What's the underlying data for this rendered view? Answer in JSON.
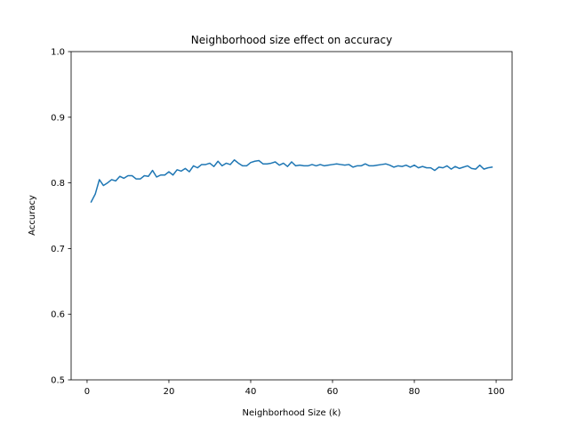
{
  "chart_data": {
    "type": "line",
    "title": "Neighborhood size effect on accuracy",
    "xlabel": "Neighborhood Size (k)",
    "ylabel": "Accuracy",
    "xlim": [
      -3.9,
      103.9
    ],
    "ylim": [
      0.5,
      1.0
    ],
    "xticks": [
      0,
      20,
      40,
      60,
      80,
      100
    ],
    "yticks": [
      0.5,
      0.6,
      0.7,
      0.8,
      0.9,
      1.0
    ],
    "ytick_labels": [
      "0.5",
      "0.6",
      "0.7",
      "0.8",
      "0.9",
      "1.0"
    ],
    "grid": false,
    "line_color": "#1f77b4",
    "series": [
      {
        "x": [
          1,
          2,
          3,
          4,
          5,
          6,
          7,
          8,
          9,
          10,
          11,
          12,
          13,
          14,
          15,
          16,
          17,
          18,
          19,
          20,
          21,
          22,
          23,
          24,
          25,
          26,
          27,
          28,
          29,
          30,
          31,
          32,
          33,
          34,
          35,
          36,
          37,
          38,
          39,
          40,
          41,
          42,
          43,
          44,
          45,
          46,
          47,
          48,
          49,
          50,
          51,
          52,
          53,
          54,
          55,
          56,
          57,
          58,
          59,
          60,
          61,
          62,
          63,
          64,
          65,
          66,
          67,
          68,
          69,
          70,
          71,
          72,
          73,
          74,
          75,
          76,
          77,
          78,
          79,
          80,
          81,
          82,
          83,
          84,
          85,
          86,
          87,
          88,
          89,
          90,
          91,
          92,
          93,
          94,
          95,
          96,
          97,
          98,
          99
        ],
        "values": [
          0.771,
          0.783,
          0.805,
          0.796,
          0.8,
          0.805,
          0.803,
          0.81,
          0.807,
          0.811,
          0.811,
          0.806,
          0.806,
          0.811,
          0.81,
          0.819,
          0.809,
          0.812,
          0.812,
          0.817,
          0.812,
          0.82,
          0.818,
          0.822,
          0.817,
          0.826,
          0.823,
          0.828,
          0.828,
          0.83,
          0.825,
          0.833,
          0.826,
          0.83,
          0.828,
          0.835,
          0.83,
          0.826,
          0.826,
          0.831,
          0.833,
          0.834,
          0.829,
          0.829,
          0.83,
          0.832,
          0.827,
          0.83,
          0.825,
          0.832,
          0.826,
          0.827,
          0.826,
          0.826,
          0.828,
          0.826,
          0.828,
          0.826,
          0.827,
          0.828,
          0.829,
          0.828,
          0.827,
          0.828,
          0.824,
          0.826,
          0.826,
          0.829,
          0.826,
          0.826,
          0.827,
          0.828,
          0.829,
          0.827,
          0.824,
          0.826,
          0.825,
          0.827,
          0.824,
          0.827,
          0.823,
          0.825,
          0.823,
          0.823,
          0.819,
          0.824,
          0.823,
          0.826,
          0.821,
          0.825,
          0.822,
          0.824,
          0.826,
          0.822,
          0.821,
          0.827,
          0.821,
          0.823,
          0.824
        ]
      }
    ]
  }
}
